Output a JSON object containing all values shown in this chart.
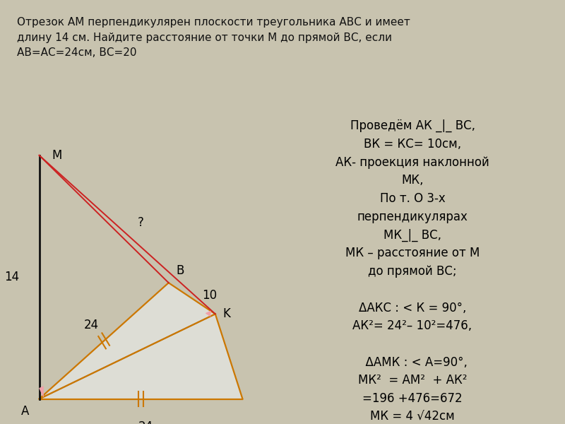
{
  "bg_color": "#c8c3af",
  "white_bg": "#ffffff",
  "solution_bg": "#e8e5dc",
  "title_text": "Отрезок АМ перпендикулярен плоскости треугольника АВС и имеет\nдлину 14 см. Найдите расстояние от точки М до прямой ВС, если\nАВ=АС=24см, ВС=20",
  "solution_lines": [
    "Проведём АК _|_ ВС,",
    "ВК = КС= 10см,",
    "АК- проекция наклонной",
    "МК,",
    "По т. О 3-х",
    "перпендикулярах",
    "МК_|_ ВС,",
    "МК – расстояние от М",
    "до прямой ВС;",
    "",
    "ΔАКС : < К = 90°,",
    "АК²= 24²– 10²=476,",
    "",
    "  ΔАМК : < А=90°,",
    "МК²  = АМ²  + АК²",
    "=196 +476=672",
    "МК = 4 √42см"
  ],
  "orange": "#cc7700",
  "red": "#cc2222",
  "black": "#111111",
  "pink": "#f0a0a8",
  "gray_fill": "#ddddd5",
  "label_fs": 12
}
